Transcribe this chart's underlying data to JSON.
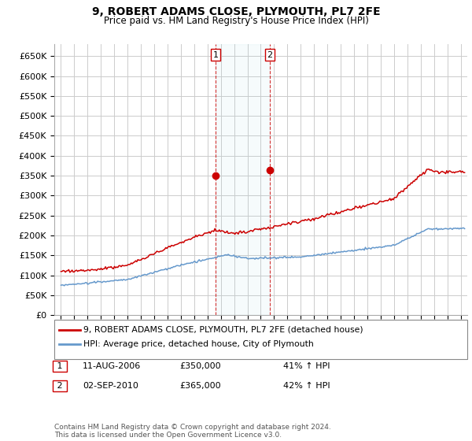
{
  "title": "9, ROBERT ADAMS CLOSE, PLYMOUTH, PL7 2FE",
  "subtitle": "Price paid vs. HM Land Registry's House Price Index (HPI)",
  "ylabel_ticks": [
    "£0",
    "£50K",
    "£100K",
    "£150K",
    "£200K",
    "£250K",
    "£300K",
    "£350K",
    "£400K",
    "£450K",
    "£500K",
    "£550K",
    "£600K",
    "£650K"
  ],
  "ylim": [
    0,
    680000
  ],
  "ytick_vals": [
    0,
    50000,
    100000,
    150000,
    200000,
    250000,
    300000,
    350000,
    400000,
    450000,
    500000,
    550000,
    600000,
    650000
  ],
  "xlim_start": 1994.5,
  "xlim_end": 2025.5,
  "grid_color": "#cccccc",
  "plot_bg": "#ffffff",
  "fig_bg": "#ffffff",
  "red_color": "#cc0000",
  "blue_color": "#6699cc",
  "sale1_year": 2006.6,
  "sale1_price": 350000,
  "sale2_year": 2010.67,
  "sale2_price": 365000,
  "legend_entries": [
    "9, ROBERT ADAMS CLOSE, PLYMOUTH, PL7 2FE (detached house)",
    "HPI: Average price, detached house, City of Plymouth"
  ],
  "annotation1_label": "1",
  "annotation1_date": "11-AUG-2006",
  "annotation1_price": "£350,000",
  "annotation1_pct": "41% ↑ HPI",
  "annotation2_label": "2",
  "annotation2_date": "02-SEP-2010",
  "annotation2_price": "£365,000",
  "annotation2_pct": "42% ↑ HPI",
  "footer": "Contains HM Land Registry data © Crown copyright and database right 2024.\nThis data is licensed under the Open Government Licence v3.0."
}
